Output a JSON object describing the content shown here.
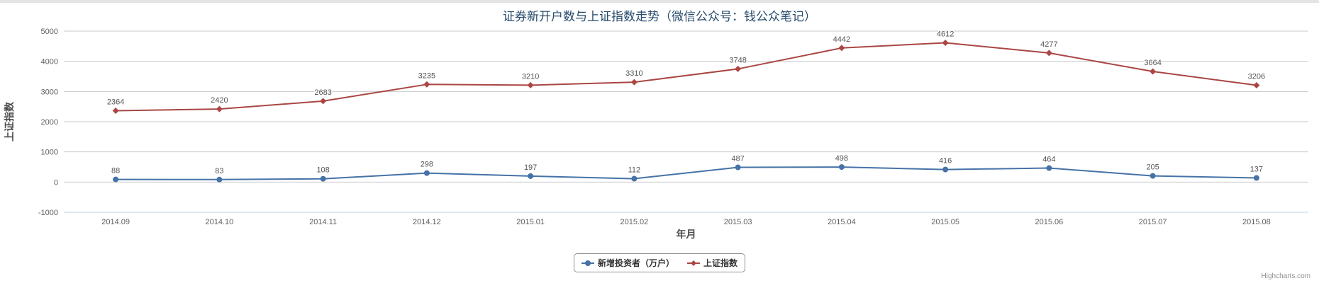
{
  "title": "证券新开户数与上证指数走势（微信公众号：钱公众笔记）",
  "credits": "Highcharts.com",
  "chart_data": {
    "type": "line",
    "title": "证券新开户数与上证指数走势（微信公众号：钱公众笔记）",
    "xlabel": "年月",
    "ylabel": "上证指数",
    "categories": [
      "2014.09",
      "2014.10",
      "2014.11",
      "2014.12",
      "2015.01",
      "2015.02",
      "2015.03",
      "2015.04",
      "2015.05",
      "2015.06",
      "2015.07",
      "2015.08"
    ],
    "series": [
      {
        "id": "new-investors",
        "name": "新增投资者（万户）",
        "color": "#4572A7",
        "marker": "circle",
        "values": [
          88,
          83,
          108,
          298,
          197,
          112,
          487,
          498,
          416,
          464,
          205,
          137
        ]
      },
      {
        "id": "shanghai-index",
        "name": "上证指数",
        "color": "#AA4643",
        "marker": "diamond",
        "values": [
          2364,
          2420,
          2683,
          3235,
          3210,
          3310,
          3748,
          4442,
          4612,
          4277,
          3664,
          3206
        ]
      }
    ],
    "ylim": [
      -1000,
      5000
    ],
    "ytick_interval": 1000,
    "yticks": [
      "-1000",
      "0",
      "1000",
      "2000",
      "3000",
      "4000",
      "5000"
    ],
    "grid": true,
    "legend_position": "bottom-center"
  },
  "colors": {
    "grid_line": "#C8C8C8",
    "axis_line": "#C0D0E0",
    "tick_label": "#606060",
    "data_label": "#555555",
    "title": "#274B6D",
    "axis_title": "#4A4A4A",
    "legend_border": "#909090",
    "legend_text": "#333333",
    "credits": "#909090"
  }
}
